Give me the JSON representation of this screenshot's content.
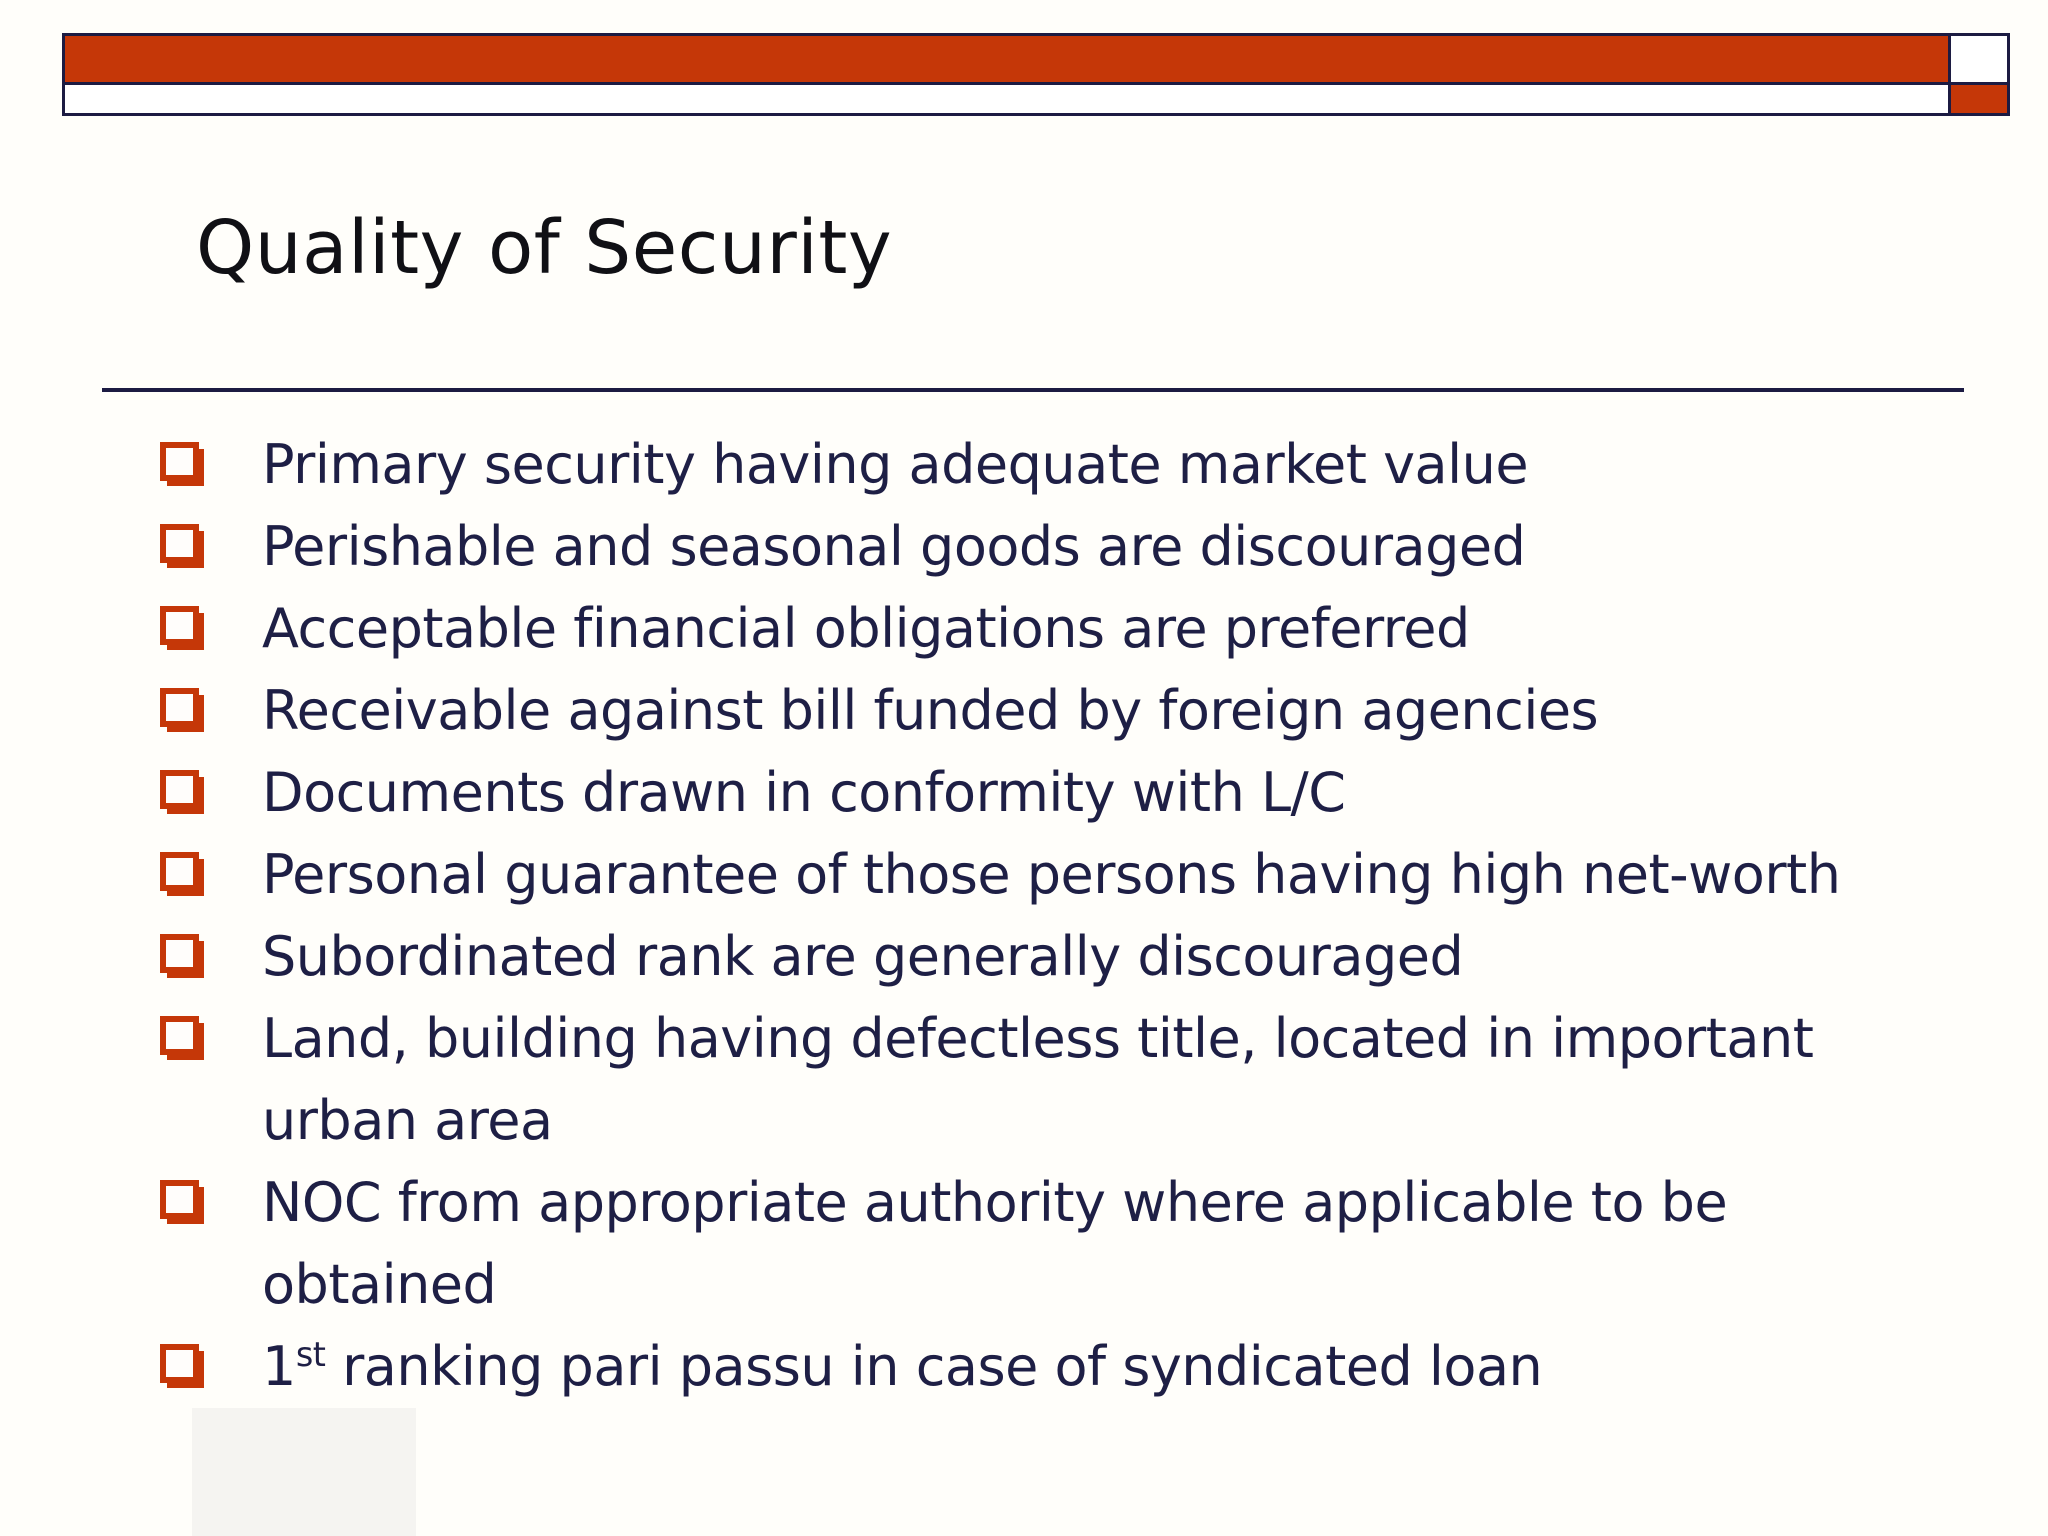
{
  "slide": {
    "title": "Quality of Security",
    "colors": {
      "accent_red": "#C53708",
      "navy_line": "#1C1B42",
      "body_text": "#1E1F45",
      "title_text": "#101015",
      "background": "#FFFEFA"
    },
    "bullet_icon": "lower-right-shadowed-white-square",
    "bullets": [
      {
        "lines": [
          [
            {
              "text": "Primary security having adequate market value"
            }
          ]
        ]
      },
      {
        "lines": [
          [
            {
              "text": "Perishable and seasonal goods are discouraged"
            }
          ]
        ]
      },
      {
        "lines": [
          [
            {
              "text": "Acceptable financial obligations are preferred"
            }
          ]
        ]
      },
      {
        "lines": [
          [
            {
              "text": "Receivable against bill funded by foreign agencies"
            }
          ]
        ]
      },
      {
        "lines": [
          [
            {
              "text": "Documents drawn in conformity with L/C"
            }
          ]
        ]
      },
      {
        "lines": [
          [
            {
              "text": "Personal guarantee of those persons having high net-worth"
            }
          ]
        ]
      },
      {
        "lines": [
          [
            {
              "text": "Subordinated rank are generally discouraged"
            }
          ]
        ]
      },
      {
        "lines": [
          [
            {
              "text": "Land, building having defectless title, located in important"
            }
          ],
          [
            {
              "text": "urban area"
            }
          ]
        ]
      },
      {
        "lines": [
          [
            {
              "text": "NOC from appropriate authority where applicable to be"
            }
          ],
          [
            {
              "text": "obtained"
            }
          ]
        ]
      },
      {
        "lines": [
          [
            {
              "text": "1"
            },
            {
              "text": "st",
              "sup": true
            },
            {
              "text": " ranking pari passu in case of syndicated loan"
            }
          ]
        ]
      }
    ]
  }
}
